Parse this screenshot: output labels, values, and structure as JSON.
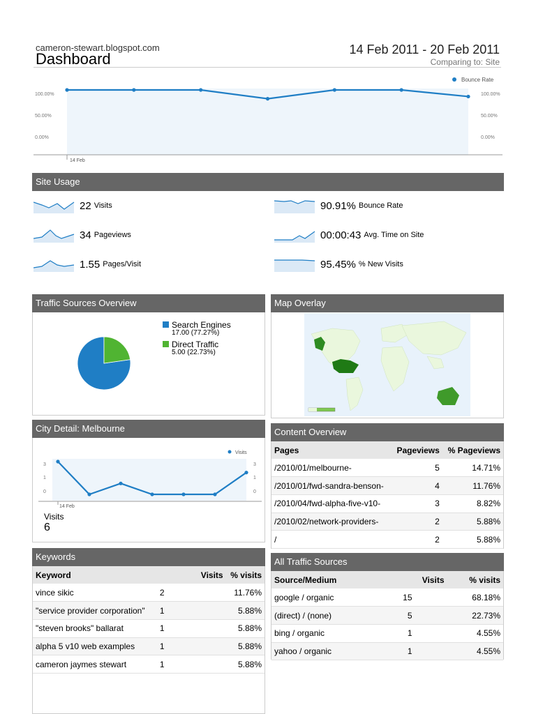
{
  "header": {
    "site_url": "cameron-stewart.blogspot.com",
    "title": "Dashboard",
    "date_range": "14 Feb 2011 - 20 Feb 2011",
    "comparing": "Comparing to: Site"
  },
  "colors": {
    "accent": "#1f7ec5",
    "header_bg": "#666666",
    "green": "#50b432",
    "fill": "#eef5fb"
  },
  "main_chart": {
    "legend": "Bounce Rate",
    "y_ticks_left": [
      "100.00%",
      "50.00%",
      "0.00%"
    ],
    "y_ticks_right": [
      "100.00%",
      "50.00%",
      "0.00%"
    ],
    "x_label": "14 Feb"
  },
  "chart_data": [
    {
      "type": "line",
      "series": [
        {
          "name": "Bounce Rate",
          "values": [
            100,
            100,
            100,
            80,
            100,
            100,
            85
          ]
        }
      ],
      "ylim": [
        0,
        100
      ]
    },
    {
      "type": "pie",
      "categories": [
        "Search Engines",
        "Direct Traffic"
      ],
      "values": [
        77.27,
        22.73
      ]
    },
    {
      "type": "line",
      "series": [
        {
          "name": "Visits",
          "values": [
            3,
            0,
            1,
            0,
            0,
            0,
            2
          ]
        }
      ],
      "ylim": [
        0,
        3
      ]
    }
  ],
  "site_usage": {
    "title": "Site Usage",
    "metrics": [
      {
        "value": "22",
        "label": "Visits"
      },
      {
        "value": "34",
        "label": "Pageviews"
      },
      {
        "value": "1.55",
        "label": "Pages/Visit"
      },
      {
        "value": "90.91%",
        "label": "Bounce Rate"
      },
      {
        "value": "00:00:43",
        "label": "Avg. Time on Site"
      },
      {
        "value": "95.45%",
        "label": "% New Visits"
      }
    ]
  },
  "traffic_sources": {
    "title": "Traffic Sources Overview",
    "items": [
      {
        "name": "Search Engines",
        "detail": "17.00 (77.27%)"
      },
      {
        "name": "Direct Traffic",
        "detail": "5.00 (22.73%)"
      }
    ]
  },
  "map_overlay": {
    "title": "Map Overlay"
  },
  "city_detail": {
    "title": "City Detail: Melbourne",
    "legend": "Visits",
    "y_ticks": [
      "3",
      "1",
      "0"
    ],
    "x_label": "14 Feb",
    "total_label": "Visits",
    "total_value": "6"
  },
  "content_overview": {
    "title": "Content Overview",
    "headers": [
      "Pages",
      "Pageviews",
      "% Pageviews"
    ],
    "rows": [
      [
        "/2010/01/melbourne-",
        "5",
        "14.71%"
      ],
      [
        "/2010/01/fwd-sandra-benson-",
        "4",
        "11.76%"
      ],
      [
        "/2010/04/fwd-alpha-five-v10-",
        "3",
        "8.82%"
      ],
      [
        "/2010/02/network-providers-",
        "2",
        "5.88%"
      ],
      [
        "/",
        "2",
        "5.88%"
      ]
    ]
  },
  "keywords": {
    "title": "Keywords",
    "headers": [
      "Keyword",
      "Visits",
      "% visits"
    ],
    "rows": [
      [
        "vince sikic",
        "2",
        "11.76%"
      ],
      [
        "\"service provider corporation\"",
        "1",
        "5.88%"
      ],
      [
        "\"steven brooks\" ballarat",
        "1",
        "5.88%"
      ],
      [
        "alpha 5 v10 web examples",
        "1",
        "5.88%"
      ],
      [
        "cameron jaymes stewart",
        "1",
        "5.88%"
      ]
    ]
  },
  "all_traffic": {
    "title": "All Traffic Sources",
    "headers": [
      "Source/Medium",
      "Visits",
      "% visits"
    ],
    "rows": [
      [
        "google / organic",
        "15",
        "68.18%"
      ],
      [
        "(direct) / (none)",
        "5",
        "22.73%"
      ],
      [
        "bing / organic",
        "1",
        "4.55%"
      ],
      [
        "yahoo / organic",
        "1",
        "4.55%"
      ]
    ]
  }
}
